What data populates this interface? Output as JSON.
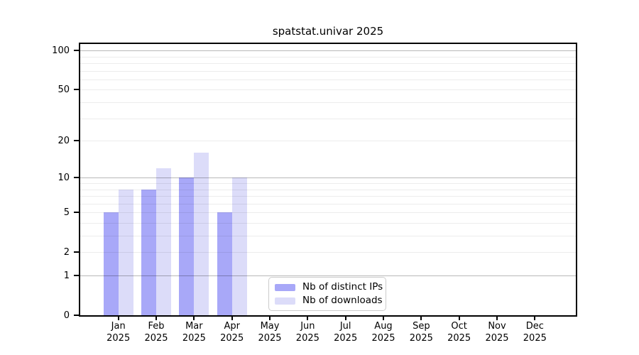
{
  "chart_data": {
    "type": "bar",
    "title": "spatstat.univar 2025",
    "categories": [
      "Jan",
      "Feb",
      "Mar",
      "Apr",
      "May",
      "Jun",
      "Jul",
      "Aug",
      "Sep",
      "Oct",
      "Nov",
      "Dec"
    ],
    "category_year": "2025",
    "series": [
      {
        "name": "Nb of distinct IPs",
        "color": "#a8a8f8",
        "values": [
          5,
          8,
          10,
          5,
          0,
          0,
          0,
          0,
          0,
          0,
          0,
          0
        ]
      },
      {
        "name": "Nb of downloads",
        "color": "#dcdcf9",
        "values": [
          8,
          12,
          16,
          10,
          0,
          0,
          0,
          0,
          0,
          0,
          0,
          0
        ]
      }
    ],
    "y_axis": {
      "scale": "log10(1+y)",
      "tick_values": [
        0,
        1,
        2,
        5,
        10,
        20,
        50,
        100
      ],
      "major_gridlines": [
        1,
        10,
        100
      ],
      "minor_gridlines": [
        2,
        3,
        4,
        5,
        6,
        7,
        8,
        9,
        20,
        30,
        40,
        50,
        60,
        70,
        80,
        90
      ],
      "ymax": 112
    },
    "legend": {
      "position": "inside-bottom-center"
    },
    "grid": "horizontal-only",
    "colors": {
      "background": "#ffffff",
      "spine": "#000000"
    }
  }
}
